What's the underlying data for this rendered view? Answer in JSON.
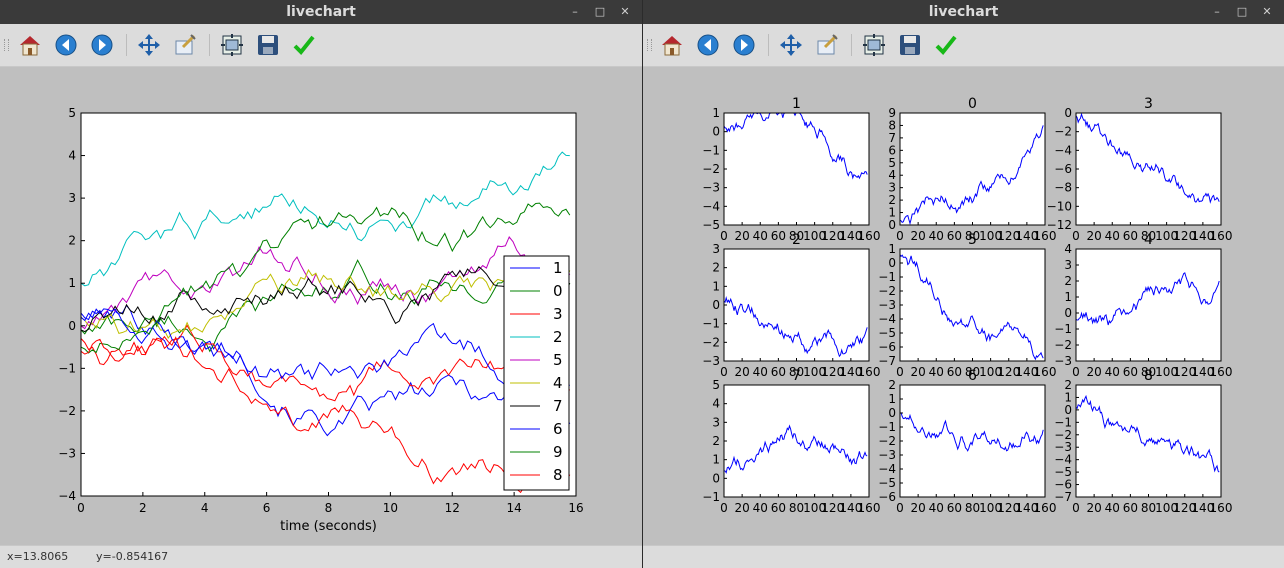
{
  "windows": [
    {
      "title": "livechart",
      "status": {
        "x": "x=13.8065",
        "y": "y=-0.854167"
      }
    },
    {
      "title": "livechart"
    }
  ],
  "toolbar": {
    "icons": [
      "home-icon",
      "back-icon",
      "forward-icon",
      "pan-icon",
      "zoom-icon",
      "subplots-icon",
      "save-icon",
      "edit-icon"
    ]
  },
  "window_controls": {
    "minimize": "–",
    "maximize": "□",
    "close": "✕"
  },
  "chart_data": [
    {
      "type": "line",
      "xlabel": "time (seconds)",
      "ylabel": "",
      "xlim": [
        0,
        16
      ],
      "ylim": [
        -4,
        5
      ],
      "xticks": [
        "0",
        "2",
        "4",
        "6",
        "8",
        "10",
        "12",
        "14",
        "16"
      ],
      "yticks": [
        "5",
        "4",
        "3",
        "2",
        "1",
        "0",
        "−1",
        "−2",
        "−3",
        "−4"
      ],
      "grid": false,
      "legend_position": "right",
      "series": [
        {
          "name": "1",
          "color": "#0000ff",
          "start": 0.3,
          "end": -2.3
        },
        {
          "name": "0",
          "color": "#008000",
          "start": -0.1,
          "end": 1.0
        },
        {
          "name": "3",
          "color": "#ff0000",
          "start": -0.3,
          "end": -1.5
        },
        {
          "name": "2",
          "color": "#00bfbf",
          "start": 1.0,
          "end": 4.0
        },
        {
          "name": "5",
          "color": "#bf00bf",
          "start": 0.0,
          "end": 1.2
        },
        {
          "name": "4",
          "color": "#bfbf00",
          "start": 0.2,
          "end": 1.3
        },
        {
          "name": "7",
          "color": "#000000",
          "start": -0.1,
          "end": 1.0
        },
        {
          "name": "6",
          "color": "#0000ff",
          "start": 0.2,
          "end": -1.4
        },
        {
          "name": "9",
          "color": "#008000",
          "start": -0.5,
          "end": 2.6
        },
        {
          "name": "8",
          "color": "#ff0000",
          "start": -0.6,
          "end": -3.5
        }
      ]
    },
    {
      "type": "line",
      "layout": "3x3 grid",
      "xticks": [
        "0",
        "20",
        "40",
        "60",
        "80",
        "100",
        "120",
        "140",
        "160"
      ],
      "subplots": [
        {
          "title": "1",
          "ylim": [
            -5,
            1
          ],
          "yticks": [
            "1",
            "0",
            "−1",
            "−2",
            "−3",
            "−4",
            "−5"
          ],
          "start": 0.3,
          "end": -2.3
        },
        {
          "title": "0",
          "ylim": [
            0,
            9
          ],
          "yticks": [
            "9",
            "8",
            "7",
            "6",
            "5",
            "4",
            "3",
            "2",
            "1",
            "0"
          ],
          "start": 0.4,
          "end": 8.0
        },
        {
          "title": "3",
          "ylim": [
            -12,
            0
          ],
          "yticks": [
            "0",
            "−2",
            "−4",
            "−6",
            "−8",
            "−10",
            "−12"
          ],
          "start": -0.3,
          "end": -9.5
        },
        {
          "title": "2",
          "ylim": [
            -3,
            3
          ],
          "yticks": [
            "3",
            "2",
            "1",
            "0",
            "−1",
            "−2",
            "−3"
          ],
          "start": 0.2,
          "end": -1.2
        },
        {
          "title": "5",
          "ylim": [
            -7,
            1
          ],
          "yticks": [
            "1",
            "0",
            "−1",
            "−2",
            "−3",
            "−4",
            "−5",
            "−6",
            "−7"
          ],
          "start": 0.6,
          "end": -6.8
        },
        {
          "title": "4",
          "ylim": [
            -3,
            4
          ],
          "yticks": [
            "4",
            "3",
            "2",
            "1",
            "0",
            "−1",
            "−2",
            "−3"
          ],
          "start": -0.4,
          "end": 2.0
        },
        {
          "title": "7",
          "ylim": [
            -1,
            5
          ],
          "yticks": [
            "5",
            "4",
            "3",
            "2",
            "1",
            "0",
            "−1"
          ],
          "start": 0.4,
          "end": 1.2
        },
        {
          "title": "6",
          "ylim": [
            -6,
            2
          ],
          "yticks": [
            "2",
            "1",
            "0",
            "−1",
            "−2",
            "−3",
            "−4",
            "−5",
            "−6"
          ],
          "start": 0.0,
          "end": -1.2
        },
        {
          "title": "8",
          "ylim": [
            -7,
            2
          ],
          "yticks": [
            "2",
            "1",
            "0",
            "−1",
            "−2",
            "−3",
            "−4",
            "−5",
            "−6",
            "−7"
          ],
          "start": 0.2,
          "end": -5.0
        }
      ]
    }
  ]
}
